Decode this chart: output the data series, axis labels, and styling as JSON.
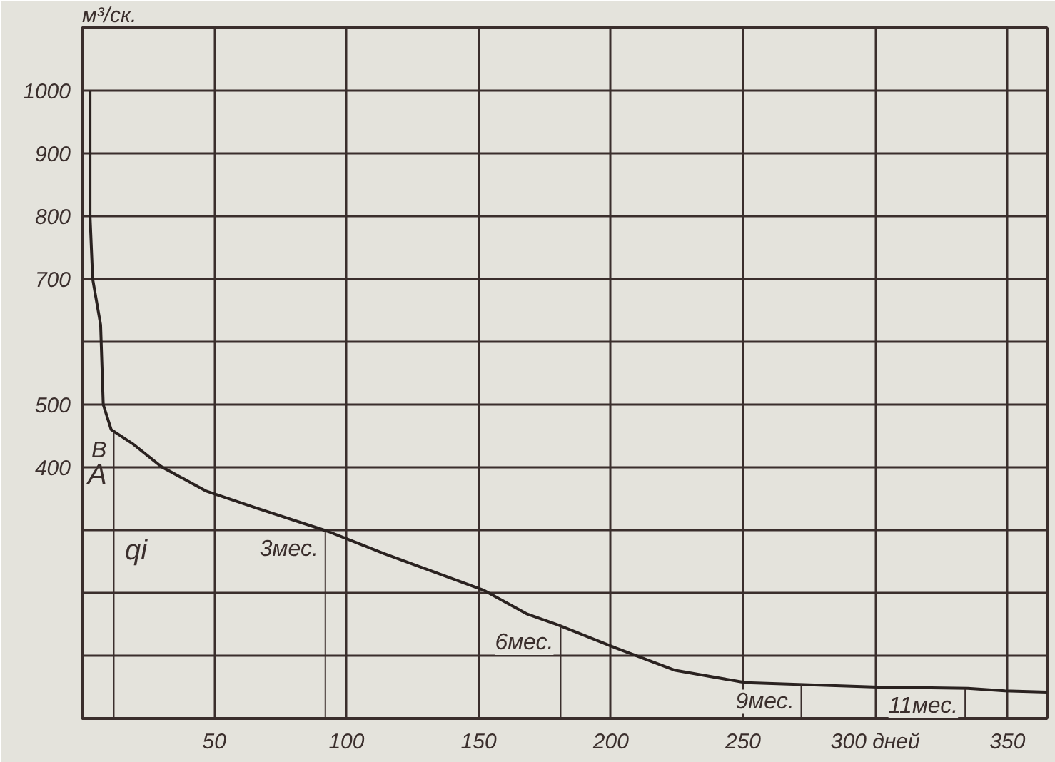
{
  "chart_data": {
    "type": "line",
    "ylabel": "м³/ск.",
    "x": [
      3,
      3,
      4,
      7,
      8,
      11,
      19,
      30,
      47,
      66,
      93,
      114,
      152,
      168,
      180,
      202,
      224,
      251,
      301,
      335,
      349,
      365
    ],
    "series": [
      {
        "color": "#2a2220",
        "values": [
          1000,
          800,
          700,
          627,
          500,
          460,
          438,
          401,
          362,
          335,
          298,
          263,
          204,
          167,
          149,
          112,
          77,
          57,
          50,
          48,
          44,
          42
        ]
      }
    ],
    "xlim": [
      0,
      365
    ],
    "ylim": [
      0,
      1100
    ],
    "xticks": [
      {
        "value": 0,
        "label": null
      },
      50,
      100,
      150,
      200,
      250,
      {
        "value": 300,
        "label": "300 дней"
      },
      350
    ],
    "yticks": [
      {
        "value": 0,
        "label": null
      },
      {
        "value": 100,
        "label": null
      },
      {
        "value": 200,
        "label": null
      },
      {
        "value": 300,
        "label": null
      },
      400,
      500,
      {
        "value": 600,
        "label": null
      },
      700,
      800,
      900,
      1000
    ],
    "grid": true,
    "marker": "none",
    "line_style": "solid",
    "annotations": [
      "A",
      {
        "text": "B",
        "x": 12,
        "y": 455
      },
      {
        "text": "3мес.",
        "x": 92,
        "y": 298
      },
      {
        "text": "6мес.",
        "x": 181,
        "y": 149
      },
      {
        "text": "9мес.",
        "x": 272,
        "y": 55
      },
      {
        "text": "11мес.",
        "x": 334,
        "y": 48
      },
      "qi"
    ]
  }
}
